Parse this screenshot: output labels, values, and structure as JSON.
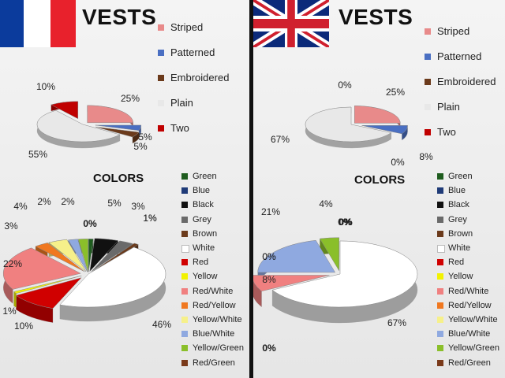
{
  "france": {
    "title": "VESTS",
    "colors_title": "COLORS",
    "flag": {
      "name": "france-flag",
      "colors": [
        "#0b3b9c",
        "#ffffff",
        "#e8212c"
      ]
    },
    "type_legend": [
      {
        "label": "Striped",
        "color": "#e88a8a"
      },
      {
        "label": "Patterned",
        "color": "#4a6fc2"
      },
      {
        "label": "Embroidered",
        "color": "#6b3a1b"
      },
      {
        "label": "Plain",
        "color": "#e8e8e8"
      },
      {
        "label": "Two",
        "color": "#c00000"
      }
    ],
    "color_legend": [
      {
        "label": "Green",
        "color": "#1e5c1e"
      },
      {
        "label": "Blue",
        "color": "#1f3b78"
      },
      {
        "label": "Black",
        "color": "#111111"
      },
      {
        "label": "Grey",
        "color": "#6a6a6a"
      },
      {
        "label": "Brown",
        "color": "#6b3a1b"
      },
      {
        "label": "White",
        "color": "#ffffff"
      },
      {
        "label": "Red",
        "color": "#d00000"
      },
      {
        "label": "Yellow",
        "color": "#f2f200"
      },
      {
        "label": "Red/White",
        "color": "#f08080"
      },
      {
        "label": "Red/Yellow",
        "color": "#f07820"
      },
      {
        "label": "Yellow/White",
        "color": "#f6f08a"
      },
      {
        "label": "Blue/White",
        "color": "#8fa9e0"
      },
      {
        "label": "Yellow/Green",
        "color": "#8abf2a"
      },
      {
        "label": "Red/Green",
        "color": "#7a3a1a"
      }
    ]
  },
  "uk": {
    "title": "VESTS",
    "colors_title": "COLORS",
    "flag": {
      "name": "uk-flag",
      "colors": [
        "#0b2a7a",
        "#ffffff",
        "#d0202e"
      ]
    },
    "type_legend": [
      {
        "label": "Striped",
        "color": "#e88a8a"
      },
      {
        "label": "Patterned",
        "color": "#4a6fc2"
      },
      {
        "label": "Embroidered",
        "color": "#6b3a1b"
      },
      {
        "label": "Plain",
        "color": "#e8e8e8"
      },
      {
        "label": "Two",
        "color": "#c00000"
      }
    ],
    "color_legend": [
      {
        "label": "Green",
        "color": "#1e5c1e"
      },
      {
        "label": "Blue",
        "color": "#1f3b78"
      },
      {
        "label": "Black",
        "color": "#111111"
      },
      {
        "label": "Grey",
        "color": "#6a6a6a"
      },
      {
        "label": "Brown",
        "color": "#6b3a1b"
      },
      {
        "label": "White",
        "color": "#ffffff"
      },
      {
        "label": "Red",
        "color": "#d00000"
      },
      {
        "label": "Yellow",
        "color": "#f2f200"
      },
      {
        "label": "Red/White",
        "color": "#f08080"
      },
      {
        "label": "Red/Yellow",
        "color": "#f07820"
      },
      {
        "label": "Yellow/White",
        "color": "#f6f08a"
      },
      {
        "label": "Blue/White",
        "color": "#8fa9e0"
      },
      {
        "label": "Yellow/Green",
        "color": "#8abf2a"
      },
      {
        "label": "Red/Green",
        "color": "#7a3a1a"
      }
    ]
  },
  "chart_data": [
    {
      "type": "pie",
      "title": "VESTS",
      "categories": [
        "Striped",
        "Patterned",
        "Embroidered",
        "Plain",
        "Two"
      ],
      "values": [
        25,
        5,
        5,
        55,
        10
      ],
      "labels": [
        "25%",
        "5%",
        "5%",
        "55%",
        "10%"
      ]
    },
    {
      "type": "pie",
      "title": "COLORS",
      "categories": [
        "Green",
        "Blue",
        "Black",
        "Grey",
        "Brown",
        "White",
        "Red",
        "Yellow",
        "Red/White",
        "Red/Yellow",
        "Yellow/White",
        "Blue/White",
        "Yellow/Green",
        "Red/Green"
      ],
      "values": [
        1,
        0,
        5,
        3,
        1,
        46,
        10,
        1,
        22,
        3,
        4,
        2,
        2,
        0
      ],
      "labels": [
        "1%",
        "0%",
        "5%",
        "3%",
        "1%",
        "46%",
        "10%",
        "1%",
        "22%",
        "3%",
        "4%",
        "2%",
        "2%",
        "0%"
      ]
    },
    {
      "type": "pie",
      "title": "VESTS",
      "categories": [
        "Striped",
        "Patterned",
        "Embroidered",
        "Plain",
        "Two"
      ],
      "values": [
        25,
        8,
        0,
        67,
        0
      ],
      "labels": [
        "25%",
        "8%",
        "0%",
        "67%",
        "0%"
      ]
    },
    {
      "type": "pie",
      "title": "COLORS",
      "categories": [
        "Green",
        "Blue",
        "Black",
        "Grey",
        "Brown",
        "White",
        "Red",
        "Yellow",
        "Red/White",
        "Red/Yellow",
        "Yellow/White",
        "Blue/White",
        "Yellow/Green",
        "Red/Green"
      ],
      "values": [
        0,
        0,
        0,
        0,
        0,
        67,
        0,
        0,
        8,
        0,
        0,
        21,
        4,
        0
      ],
      "labels": [
        "0%",
        "0%",
        "0%",
        "0%",
        "0%",
        "67%",
        "0%",
        "0%",
        "8%",
        "0%",
        "0%",
        "21%",
        "4%",
        "0%"
      ]
    }
  ]
}
